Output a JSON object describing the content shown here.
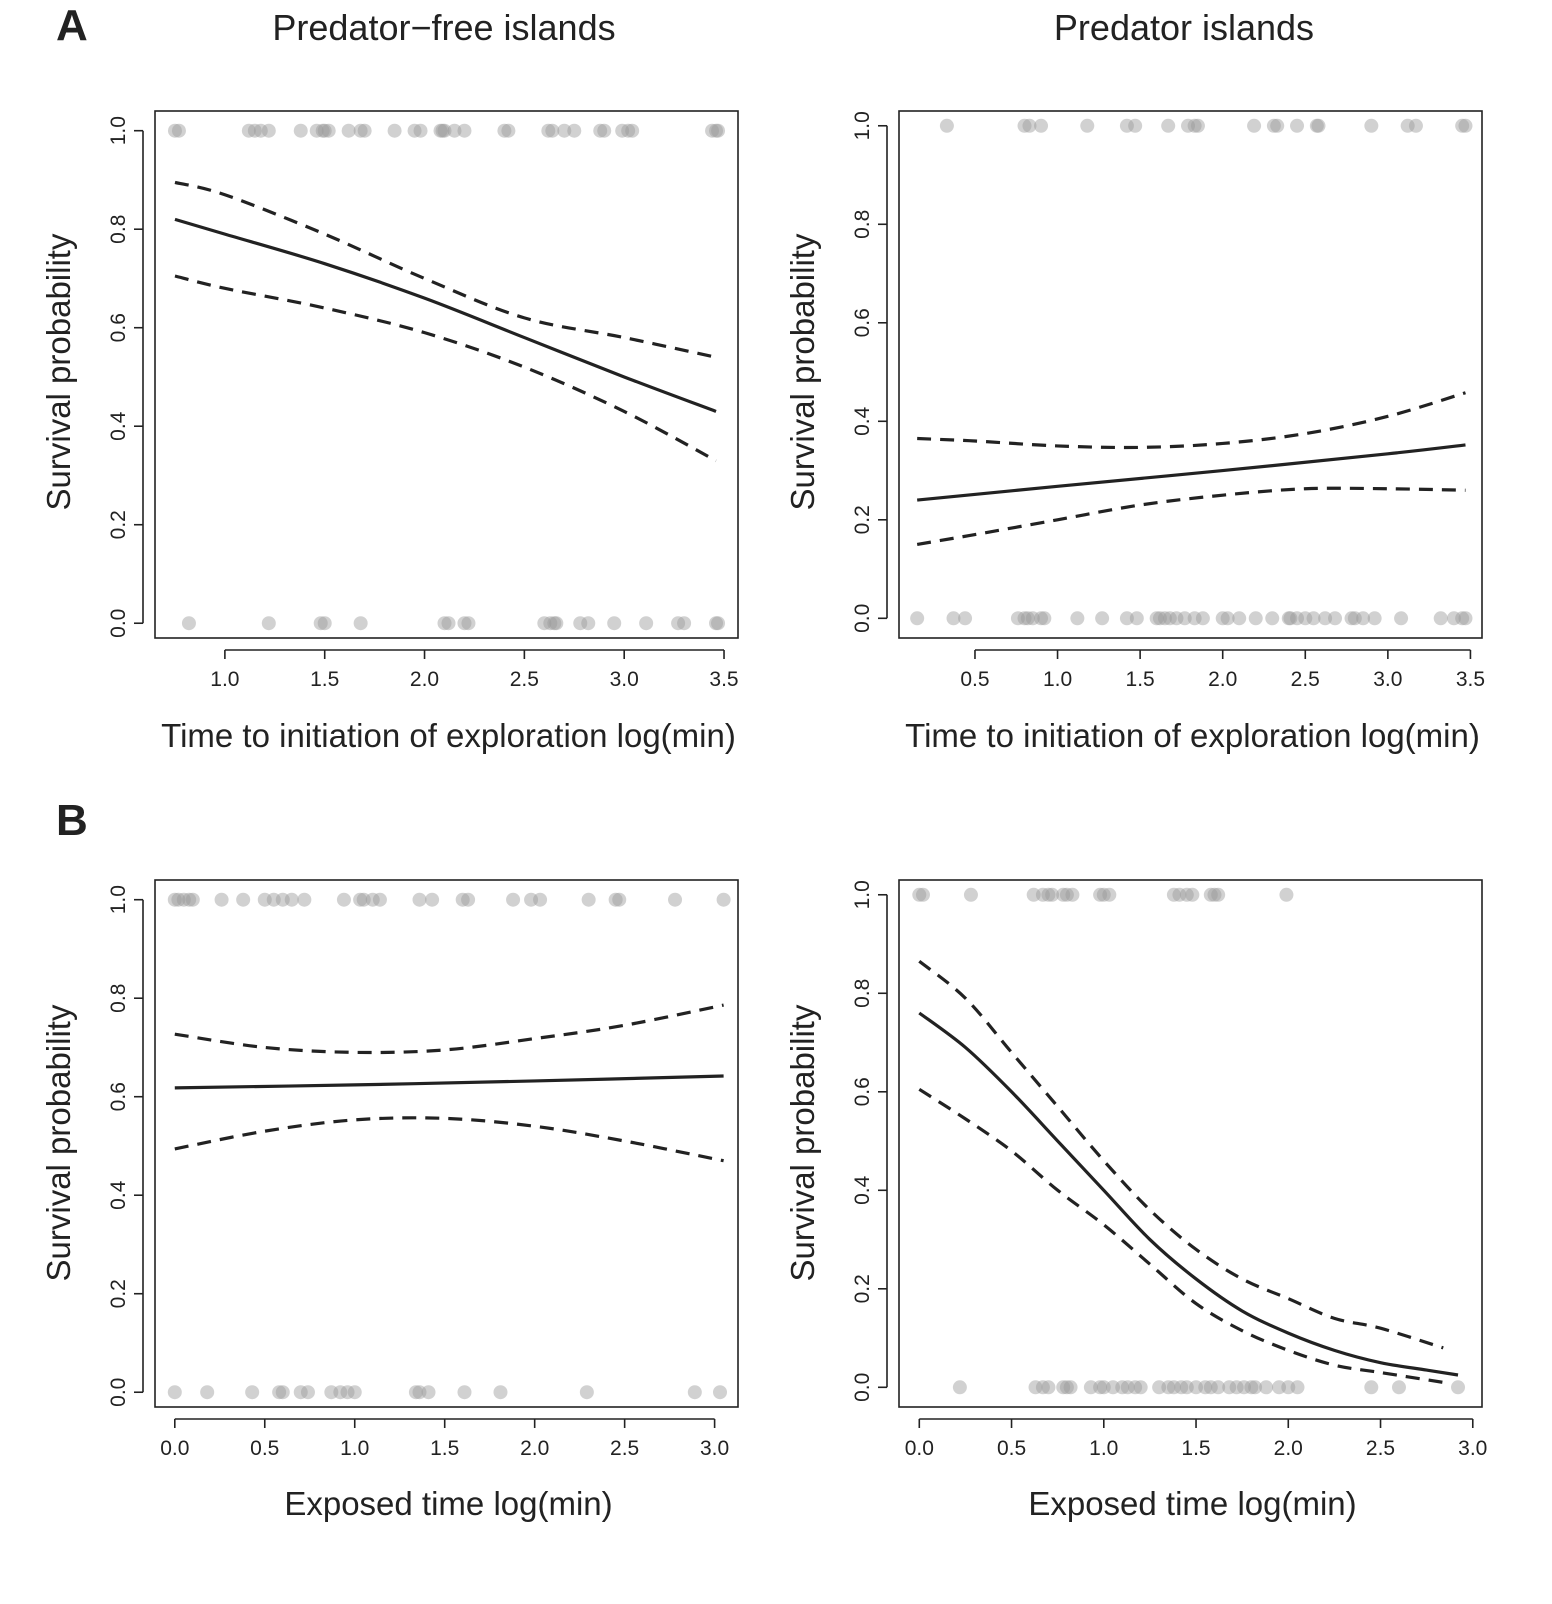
{
  "figure": {
    "panel_labels": [
      "A",
      "B"
    ],
    "column_titles": [
      "Predator−free islands",
      "Predator islands"
    ]
  },
  "chart_data": [
    {
      "id": "A-left",
      "type": "line",
      "panel": "A",
      "column_title": "Predator−free islands",
      "xlabel": "Time to initiation of exploration log(min)",
      "ylabel": "Survival probability",
      "xlim": [
        0.65,
        3.57
      ],
      "ylim": [
        -0.03,
        1.04
      ],
      "xticks": [
        1.0,
        1.5,
        2.0,
        2.5,
        3.0,
        3.5
      ],
      "xtick_labels": [
        "1.0",
        "1.5",
        "2.0",
        "2.5",
        "3.0",
        "3.5"
      ],
      "yticks": [
        0.0,
        0.2,
        0.4,
        0.6,
        0.8,
        1.0
      ],
      "ytick_labels": [
        "0.0",
        "0.2",
        "0.4",
        "0.6",
        "0.8",
        "1.0"
      ],
      "fit": {
        "x": [
          0.75,
          1.0,
          1.5,
          2.0,
          2.5,
          3.0,
          3.46
        ],
        "y": [
          0.82,
          0.79,
          0.73,
          0.66,
          0.58,
          0.5,
          0.43
        ]
      },
      "ci_upper": {
        "x": [
          0.75,
          1.0,
          1.5,
          2.0,
          2.5,
          3.0,
          3.46
        ],
        "y": [
          0.895,
          0.87,
          0.79,
          0.7,
          0.62,
          0.58,
          0.54
        ]
      },
      "ci_lower": {
        "x": [
          0.75,
          1.0,
          1.5,
          2.0,
          2.5,
          3.0,
          3.46
        ],
        "y": [
          0.705,
          0.68,
          0.64,
          0.59,
          0.52,
          0.43,
          0.33
        ]
      },
      "points_survived": [
        0.75,
        0.77,
        1.12,
        1.15,
        1.18,
        1.22,
        1.38,
        1.46,
        1.49,
        1.5,
        1.52,
        1.62,
        1.68,
        1.7,
        1.85,
        1.95,
        1.98,
        2.08,
        2.09,
        2.1,
        2.15,
        2.2,
        2.4,
        2.42,
        2.62,
        2.64,
        2.7,
        2.75,
        2.88,
        2.9,
        2.99,
        3.02,
        3.04,
        3.44,
        3.46,
        3.47
      ],
      "points_died": [
        0.82,
        1.22,
        1.48,
        1.5,
        1.68,
        2.1,
        2.12,
        2.2,
        2.22,
        2.6,
        2.63,
        2.65,
        2.66,
        2.78,
        2.82,
        2.95,
        3.11,
        3.27,
        3.3,
        3.46,
        3.47
      ]
    },
    {
      "id": "A-right",
      "type": "line",
      "panel": "A",
      "column_title": "Predator islands",
      "xlabel": "Time to initiation of exploration log(min)",
      "ylabel": "Survival probability",
      "xlim": [
        0.04,
        3.57
      ],
      "ylim": [
        -0.04,
        1.03
      ],
      "xticks": [
        0.5,
        1.0,
        1.5,
        2.0,
        2.5,
        3.0,
        3.5
      ],
      "xtick_labels": [
        "0.5",
        "1.0",
        "1.5",
        "2.0",
        "2.5",
        "3.0",
        "3.5"
      ],
      "yticks": [
        0.0,
        0.2,
        0.4,
        0.6,
        0.8,
        1.0
      ],
      "ytick_labels": [
        "0.0",
        "0.2",
        "0.4",
        "0.6",
        "0.8",
        "1.0"
      ],
      "fit": {
        "x": [
          0.15,
          1.0,
          2.0,
          3.0,
          3.47
        ],
        "y": [
          0.24,
          0.268,
          0.3,
          0.334,
          0.352
        ]
      },
      "ci_upper": {
        "x": [
          0.15,
          0.5,
          1.0,
          1.5,
          2.0,
          2.5,
          3.0,
          3.47
        ],
        "y": [
          0.365,
          0.36,
          0.35,
          0.347,
          0.355,
          0.375,
          0.41,
          0.458
        ]
      },
      "ci_lower": {
        "x": [
          0.15,
          0.5,
          1.0,
          1.5,
          2.0,
          2.5,
          3.0,
          3.47
        ],
        "y": [
          0.15,
          0.17,
          0.2,
          0.23,
          0.25,
          0.263,
          0.263,
          0.26
        ]
      },
      "points_survived": [
        0.33,
        0.8,
        0.83,
        0.9,
        1.18,
        1.42,
        1.47,
        1.67,
        1.79,
        1.83,
        1.85,
        2.19,
        2.31,
        2.33,
        2.45,
        2.57,
        2.58,
        2.9,
        3.12,
        3.17,
        3.45,
        3.47
      ],
      "points_died": [
        0.15,
        0.37,
        0.44,
        0.76,
        0.8,
        0.82,
        0.85,
        0.9,
        0.92,
        1.12,
        1.27,
        1.42,
        1.48,
        1.6,
        1.62,
        1.65,
        1.68,
        1.72,
        1.77,
        1.83,
        1.88,
        2.0,
        2.03,
        2.1,
        2.2,
        2.3,
        2.4,
        2.41,
        2.45,
        2.5,
        2.55,
        2.62,
        2.68,
        2.78,
        2.8,
        2.85,
        2.92,
        3.08,
        3.32,
        3.4,
        3.45,
        3.47
      ]
    },
    {
      "id": "B-left",
      "type": "line",
      "panel": "B",
      "xlabel": "Exposed time log(min)",
      "ylabel": "Survival probability",
      "xlim": [
        -0.11,
        3.13
      ],
      "ylim": [
        -0.03,
        1.04
      ],
      "xticks": [
        0.0,
        0.5,
        1.0,
        1.5,
        2.0,
        2.5,
        3.0
      ],
      "xtick_labels": [
        "0.0",
        "0.5",
        "1.0",
        "1.5",
        "2.0",
        "2.5",
        "3.0"
      ],
      "yticks": [
        0.0,
        0.2,
        0.4,
        0.6,
        0.8,
        1.0
      ],
      "ytick_labels": [
        "0.0",
        "0.2",
        "0.4",
        "0.6",
        "0.8",
        "1.0"
      ],
      "fit": {
        "x": [
          0.0,
          1.0,
          2.0,
          3.05
        ],
        "y": [
          0.618,
          0.624,
          0.632,
          0.642
        ]
      },
      "ci_upper": {
        "x": [
          0.0,
          0.5,
          1.0,
          1.5,
          2.0,
          2.5,
          3.05
        ],
        "y": [
          0.727,
          0.7,
          0.69,
          0.695,
          0.718,
          0.745,
          0.786
        ]
      },
      "ci_lower": {
        "x": [
          0.0,
          0.5,
          1.0,
          1.5,
          2.0,
          2.5,
          3.05
        ],
        "y": [
          0.494,
          0.53,
          0.553,
          0.556,
          0.54,
          0.51,
          0.47
        ]
      },
      "points_survived": [
        0.0,
        0.02,
        0.05,
        0.08,
        0.1,
        0.26,
        0.38,
        0.5,
        0.55,
        0.6,
        0.65,
        0.72,
        0.94,
        1.03,
        1.05,
        1.1,
        1.14,
        1.36,
        1.43,
        1.6,
        1.63,
        1.88,
        1.98,
        2.03,
        2.3,
        2.45,
        2.47,
        2.78,
        3.05
      ],
      "points_died": [
        0.0,
        0.18,
        0.43,
        0.58,
        0.6,
        0.7,
        0.74,
        0.87,
        0.92,
        0.96,
        1.0,
        1.34,
        1.36,
        1.41,
        1.61,
        1.81,
        2.29,
        2.89,
        3.03
      ]
    },
    {
      "id": "B-right",
      "type": "line",
      "panel": "B",
      "xlabel": "Exposed time log(min)",
      "ylabel": "Survival probability",
      "xlim": [
        -0.11,
        3.05
      ],
      "ylim": [
        -0.04,
        1.03
      ],
      "xticks": [
        0.0,
        0.5,
        1.0,
        1.5,
        2.0,
        2.5,
        3.0
      ],
      "xtick_labels": [
        "0.0",
        "0.5",
        "1.0",
        "1.5",
        "2.0",
        "2.5",
        "3.0"
      ],
      "yticks": [
        0.0,
        0.2,
        0.4,
        0.6,
        0.8,
        1.0
      ],
      "ytick_labels": [
        "0.0",
        "0.2",
        "0.4",
        "0.6",
        "0.8",
        "1.0"
      ],
      "fit": {
        "x": [
          0.0,
          0.25,
          0.5,
          0.75,
          1.0,
          1.25,
          1.5,
          1.75,
          2.0,
          2.25,
          2.5,
          2.75,
          2.92
        ],
        "y": [
          0.76,
          0.69,
          0.6,
          0.5,
          0.4,
          0.3,
          0.22,
          0.155,
          0.11,
          0.075,
          0.05,
          0.035,
          0.025
        ]
      },
      "ci_upper": {
        "x": [
          0.0,
          0.25,
          0.5,
          0.75,
          1.0,
          1.25,
          1.5,
          1.75,
          2.0,
          2.25,
          2.5,
          2.84
        ],
        "y": [
          0.865,
          0.79,
          0.68,
          0.57,
          0.46,
          0.36,
          0.28,
          0.22,
          0.18,
          0.14,
          0.12,
          0.08
        ]
      },
      "ci_lower": {
        "x": [
          0.0,
          0.25,
          0.5,
          0.75,
          1.0,
          1.25,
          1.5,
          1.75,
          2.0,
          2.25,
          2.5,
          2.84
        ],
        "y": [
          0.605,
          0.545,
          0.48,
          0.4,
          0.33,
          0.25,
          0.17,
          0.115,
          0.075,
          0.045,
          0.03,
          0.01
        ]
      },
      "points_survived": [
        0.0,
        0.02,
        0.28,
        0.62,
        0.67,
        0.7,
        0.72,
        0.78,
        0.8,
        0.83,
        0.98,
        1.0,
        1.03,
        1.38,
        1.41,
        1.45,
        1.48,
        1.58,
        1.6,
        1.62,
        1.99
      ],
      "points_died": [
        0.22,
        0.63,
        0.67,
        0.7,
        0.78,
        0.8,
        0.82,
        0.93,
        0.98,
        1.0,
        1.05,
        1.1,
        1.13,
        1.17,
        1.2,
        1.3,
        1.35,
        1.38,
        1.42,
        1.45,
        1.5,
        1.55,
        1.58,
        1.62,
        1.68,
        1.72,
        1.76,
        1.8,
        1.82,
        1.88,
        1.95,
        2.0,
        2.05,
        2.45,
        2.6,
        2.92
      ]
    }
  ]
}
